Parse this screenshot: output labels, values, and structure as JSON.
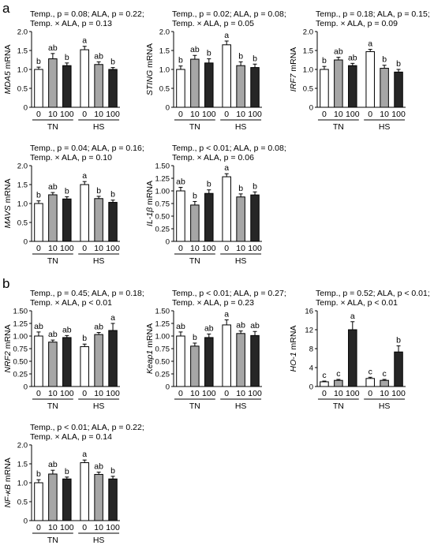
{
  "panels": [
    {
      "label": "a"
    },
    {
      "label": "b"
    }
  ],
  "styles": {
    "bar_fills": [
      "#ffffff",
      "#a6a6a6",
      "#262626"
    ]
  },
  "chart_data": [
    {
      "type": "bar",
      "panel": "a",
      "stats": [
        "Temp., p = 0.08; ALA, p = 0.22;",
        "Temp. × ALA, p = 0.13"
      ],
      "ylabel_gene": "MDA5",
      "ylabel_suffix": " mRNA",
      "ylim": [
        0,
        2.0
      ],
      "yticks": [
        "0",
        "0.5",
        "1.0",
        "1.5",
        "2.0"
      ],
      "groups": [
        "TN",
        "HS"
      ],
      "categories": [
        "0",
        "10",
        "100"
      ],
      "values": [
        [
          1.0,
          1.28,
          1.1
        ],
        [
          1.52,
          1.13,
          1.0
        ]
      ],
      "errors": [
        [
          0.06,
          0.14,
          0.07
        ],
        [
          0.09,
          0.07,
          0.05
        ]
      ],
      "letters": [
        [
          "b",
          "ab",
          "b"
        ],
        [
          "a",
          "ab",
          "b"
        ]
      ]
    },
    {
      "type": "bar",
      "panel": "a",
      "stats": [
        "Temp., p = 0.02; ALA, p = 0.08;",
        "Temp. × ALA, p = 0.05"
      ],
      "ylabel_gene": "STING",
      "ylabel_suffix": " mRNA",
      "ylim": [
        0,
        2.0
      ],
      "yticks": [
        "0",
        "0.5",
        "1.0",
        "1.5",
        "2.0"
      ],
      "groups": [
        "TN",
        "HS"
      ],
      "categories": [
        "0",
        "10",
        "100"
      ],
      "values": [
        [
          1.0,
          1.27,
          1.17
        ],
        [
          1.65,
          1.1,
          1.05
        ]
      ],
      "errors": [
        [
          0.09,
          0.1,
          0.11
        ],
        [
          0.1,
          0.1,
          0.09
        ]
      ],
      "letters": [
        [
          "b",
          "ab",
          "b"
        ],
        [
          "a",
          "b",
          "b"
        ]
      ]
    },
    {
      "type": "bar",
      "panel": "a",
      "stats": [
        "Temp., p = 0.18; ALA, p = 0.15;",
        "Temp. × ALA, p = 0.09"
      ],
      "ylabel_gene": "IRF7",
      "ylabel_suffix": " mRNA",
      "ylim": [
        0,
        2.0
      ],
      "yticks": [
        "0",
        "0.5",
        "1.0",
        "1.5",
        "2.0"
      ],
      "groups": [
        "TN",
        "HS"
      ],
      "categories": [
        "0",
        "10",
        "100"
      ],
      "values": [
        [
          1.0,
          1.25,
          1.1
        ],
        [
          1.47,
          1.03,
          0.93
        ]
      ],
      "errors": [
        [
          0.08,
          0.07,
          0.06
        ],
        [
          0.06,
          0.08,
          0.07
        ]
      ],
      "letters": [
        [
          "b",
          "ab",
          "ab"
        ],
        [
          "a",
          "b",
          "b"
        ]
      ]
    },
    {
      "type": "bar",
      "panel": "a",
      "stats": [
        "Temp., p = 0.04; ALA, p = 0.16;",
        "Temp. × ALA, p = 0.10"
      ],
      "ylabel_gene": "MAVS",
      "ylabel_suffix": " mRNA",
      "ylim": [
        0,
        2.0
      ],
      "yticks": [
        "0",
        "0.5",
        "1.0",
        "1.5",
        "2.0"
      ],
      "groups": [
        "TN",
        "HS"
      ],
      "categories": [
        "0",
        "10",
        "100"
      ],
      "values": [
        [
          1.0,
          1.23,
          1.12
        ],
        [
          1.5,
          1.13,
          1.03
        ]
      ],
      "errors": [
        [
          0.07,
          0.06,
          0.06
        ],
        [
          0.08,
          0.06,
          0.06
        ]
      ],
      "letters": [
        [
          "b",
          "ab",
          "b"
        ],
        [
          "a",
          "b",
          "b"
        ]
      ]
    },
    {
      "type": "bar",
      "panel": "a",
      "stats": [
        "Temp., p < 0.01; ALA, p = 0.08;",
        "Temp. × ALA, p = 0.06"
      ],
      "ylabel_gene": "IL-1β",
      "ylabel_suffix": " mRNA",
      "ylim": [
        0,
        1.5
      ],
      "yticks": [
        "0",
        "0.25",
        "0.50",
        "0.75",
        "1.00",
        "1.25",
        "1.50"
      ],
      "groups": [
        "TN",
        "HS"
      ],
      "categories": [
        "0",
        "10",
        "100"
      ],
      "values": [
        [
          1.0,
          0.72,
          0.95
        ],
        [
          1.28,
          0.88,
          0.92
        ]
      ],
      "errors": [
        [
          0.07,
          0.07,
          0.07
        ],
        [
          0.06,
          0.06,
          0.06
        ]
      ],
      "letters": [
        [
          "ab",
          "b",
          "b"
        ],
        [
          "a",
          "b",
          "b"
        ]
      ]
    },
    {
      "type": "bar",
      "panel": "b",
      "stats": [
        "Temp., p = 0.45; ALA, p = 0.18;",
        "Temp. × ALA, p < 0.01"
      ],
      "ylabel_gene": "NRF2",
      "ylabel_suffix": " mRNA",
      "ylim": [
        0,
        1.5
      ],
      "yticks": [
        "0",
        "0.25",
        "0.50",
        "0.75",
        "1.00",
        "1.25",
        "1.50"
      ],
      "groups": [
        "TN",
        "HS"
      ],
      "categories": [
        "0",
        "10",
        "100"
      ],
      "values": [
        [
          1.0,
          0.88,
          0.97
        ],
        [
          0.79,
          1.03,
          1.11
        ]
      ],
      "errors": [
        [
          0.08,
          0.04,
          0.04
        ],
        [
          0.05,
          0.04,
          0.14
        ]
      ],
      "letters": [
        [
          "ab",
          "ab",
          "ab"
        ],
        [
          "b",
          "ab",
          "a"
        ]
      ]
    },
    {
      "type": "bar",
      "panel": "b",
      "stats": [
        "Temp., p < 0.01; ALA, p = 0.27;",
        "Temp. × ALA, p = 0.23"
      ],
      "ylabel_gene": "Keap1",
      "ylabel_suffix": " mRNA",
      "ylim": [
        0,
        1.5
      ],
      "yticks": [
        "0",
        "0.25",
        "0.50",
        "0.75",
        "1.00",
        "1.25",
        "1.50"
      ],
      "groups": [
        "TN",
        "HS"
      ],
      "categories": [
        "0",
        "10",
        "100"
      ],
      "values": [
        [
          1.0,
          0.8,
          0.97
        ],
        [
          1.22,
          1.05,
          1.01
        ]
      ],
      "errors": [
        [
          0.08,
          0.06,
          0.07
        ],
        [
          0.1,
          0.05,
          0.08
        ]
      ],
      "letters": [
        [
          "ab",
          "b",
          "ab"
        ],
        [
          "a",
          "ab",
          "ab"
        ]
      ]
    },
    {
      "type": "bar",
      "panel": "b",
      "stats": [
        "Temp., p = 0.52; ALA, p < 0.01;",
        "Temp. × ALA, p < 0.01"
      ],
      "ylabel_gene": "HO-1",
      "ylabel_suffix": " mRNA",
      "ylim": [
        0,
        16
      ],
      "yticks": [
        "0",
        "4",
        "8",
        "12",
        "16"
      ],
      "groups": [
        "TN",
        "HS"
      ],
      "categories": [
        "0",
        "10",
        "100"
      ],
      "values": [
        [
          1.0,
          1.3,
          12.0
        ],
        [
          1.7,
          1.3,
          7.3
        ]
      ],
      "errors": [
        [
          0.15,
          0.2,
          1.7
        ],
        [
          0.25,
          0.2,
          1.3
        ]
      ],
      "letters": [
        [
          "c",
          "c",
          "a"
        ],
        [
          "c",
          "c",
          "b"
        ]
      ]
    },
    {
      "type": "bar",
      "panel": "b",
      "stats": [
        "Temp., p < 0.01; ALA, p = 0.22;",
        "Temp. × ALA, p = 0.14"
      ],
      "ylabel_gene": "NF-κB",
      "ylabel_suffix": " mRNA",
      "ylim": [
        0,
        2.0
      ],
      "yticks": [
        "0",
        "0.5",
        "1.0",
        "1.5",
        "2.0"
      ],
      "groups": [
        "TN",
        "HS"
      ],
      "categories": [
        "0",
        "10",
        "100"
      ],
      "values": [
        [
          1.0,
          1.23,
          1.1
        ],
        [
          1.53,
          1.22,
          1.1
        ]
      ],
      "errors": [
        [
          0.08,
          0.1,
          0.05
        ],
        [
          0.07,
          0.06,
          0.07
        ]
      ],
      "letters": [
        [
          "b",
          "ab",
          "b"
        ],
        [
          "a",
          "ab",
          "b"
        ]
      ]
    }
  ]
}
